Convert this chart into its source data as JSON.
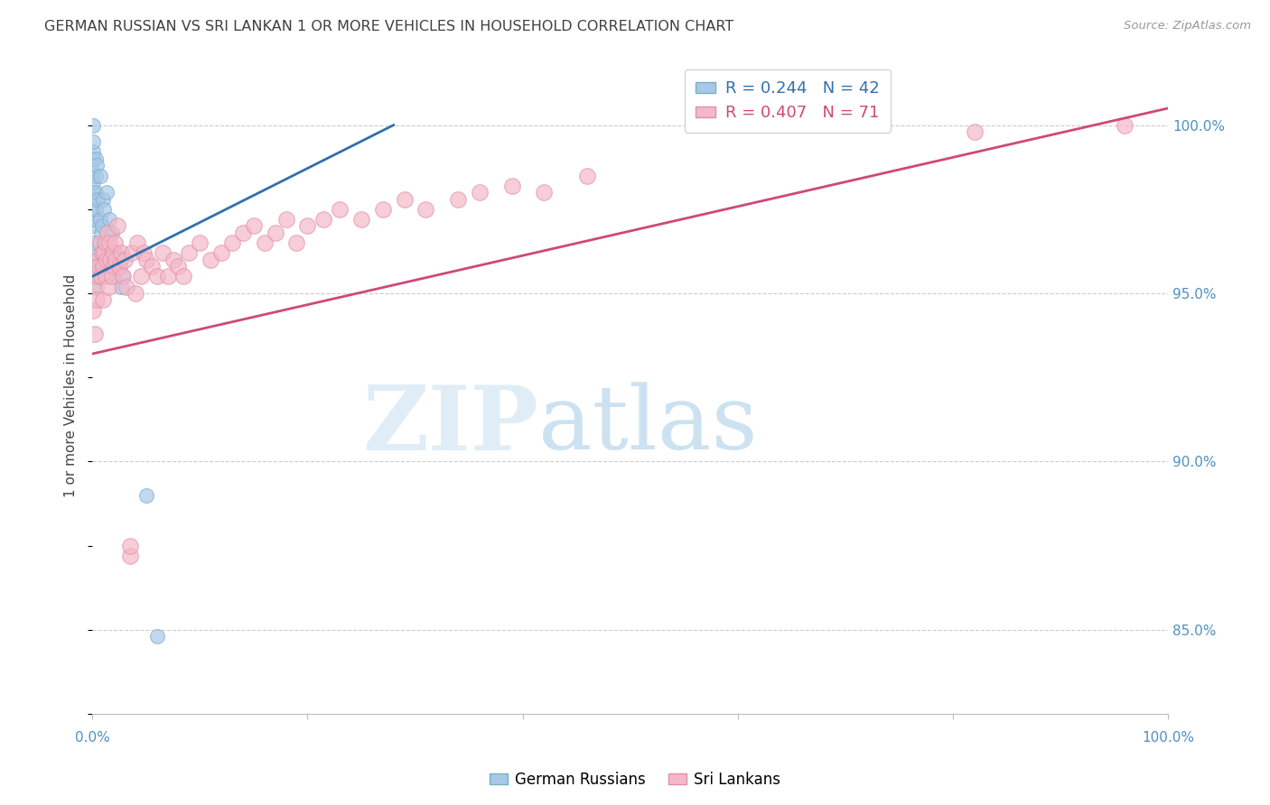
{
  "title": "GERMAN RUSSIAN VS SRI LANKAN 1 OR MORE VEHICLES IN HOUSEHOLD CORRELATION CHART",
  "source": "Source: ZipAtlas.com",
  "ylabel": "1 or more Vehicles in Household",
  "watermark_zip": "ZIP",
  "watermark_atlas": "atlas",
  "legend_blue_r": "R = 0.244",
  "legend_blue_n": "N = 42",
  "legend_pink_r": "R = 0.407",
  "legend_pink_n": "N = 71",
  "legend_label_blue": "German Russians",
  "legend_label_pink": "Sri Lankans",
  "yticks": [
    85.0,
    90.0,
    95.0,
    100.0
  ],
  "xlim": [
    0.0,
    1.0
  ],
  "ylim": [
    82.5,
    102.0
  ],
  "blue_fill_color": "#a8c8e8",
  "pink_fill_color": "#f4b8c8",
  "blue_edge_color": "#7aaec8",
  "pink_edge_color": "#e090a8",
  "blue_line_color": "#3070b0",
  "pink_line_color": "#d04878",
  "axis_label_color": "#5090c0",
  "grid_color": "#cccccc",
  "title_color": "#404040",
  "blue_x": [
    0.001,
    0.001,
    0.001,
    0.001,
    0.001,
    0.001,
    0.001,
    0.001,
    0.001,
    0.001,
    0.001,
    0.001,
    0.001,
    0.001,
    0.001,
    0.001,
    0.001,
    0.003,
    0.003,
    0.003,
    0.003,
    0.004,
    0.005,
    0.007,
    0.007,
    0.008,
    0.009,
    0.01,
    0.01,
    0.011,
    0.013,
    0.015,
    0.016,
    0.018,
    0.02,
    0.022,
    0.025,
    0.027,
    0.027,
    0.028,
    0.05,
    0.06
  ],
  "blue_y": [
    95.2,
    95.5,
    95.8,
    96.0,
    96.2,
    96.5,
    97.0,
    97.2,
    97.5,
    97.8,
    98.0,
    98.3,
    98.6,
    99.0,
    99.2,
    99.5,
    100.0,
    97.5,
    98.0,
    98.5,
    99.0,
    98.8,
    97.8,
    97.2,
    98.5,
    96.8,
    97.0,
    96.5,
    97.8,
    97.5,
    98.0,
    96.5,
    97.2,
    96.8,
    95.5,
    96.2,
    95.8,
    95.2,
    96.0,
    95.5,
    89.0,
    84.8
  ],
  "pink_x": [
    0.001,
    0.002,
    0.003,
    0.004,
    0.005,
    0.005,
    0.006,
    0.007,
    0.008,
    0.009,
    0.01,
    0.01,
    0.011,
    0.012,
    0.012,
    0.013,
    0.014,
    0.015,
    0.016,
    0.017,
    0.018,
    0.019,
    0.02,
    0.021,
    0.022,
    0.023,
    0.025,
    0.027,
    0.028,
    0.03,
    0.032,
    0.035,
    0.035,
    0.037,
    0.04,
    0.042,
    0.045,
    0.048,
    0.05,
    0.055,
    0.06,
    0.065,
    0.07,
    0.075,
    0.08,
    0.085,
    0.09,
    0.1,
    0.11,
    0.12,
    0.13,
    0.14,
    0.15,
    0.16,
    0.17,
    0.18,
    0.19,
    0.2,
    0.215,
    0.23,
    0.25,
    0.27,
    0.29,
    0.31,
    0.34,
    0.36,
    0.39,
    0.42,
    0.46,
    0.82,
    0.96
  ],
  "pink_y": [
    94.5,
    93.8,
    95.2,
    94.8,
    95.5,
    96.0,
    95.8,
    96.5,
    95.5,
    96.2,
    94.8,
    95.8,
    96.2,
    95.5,
    96.5,
    96.0,
    96.8,
    95.2,
    96.5,
    96.0,
    95.5,
    96.2,
    95.8,
    96.5,
    96.0,
    97.0,
    95.8,
    96.2,
    95.5,
    96.0,
    95.2,
    87.2,
    87.5,
    96.2,
    95.0,
    96.5,
    95.5,
    96.2,
    96.0,
    95.8,
    95.5,
    96.2,
    95.5,
    96.0,
    95.8,
    95.5,
    96.2,
    96.5,
    96.0,
    96.2,
    96.5,
    96.8,
    97.0,
    96.5,
    96.8,
    97.2,
    96.5,
    97.0,
    97.2,
    97.5,
    97.2,
    97.5,
    97.8,
    97.5,
    97.8,
    98.0,
    98.2,
    98.0,
    98.5,
    99.8,
    100.0
  ],
  "blue_line_x": [
    0.0,
    0.28
  ],
  "blue_line_y": [
    95.5,
    100.0
  ],
  "pink_line_x": [
    0.0,
    1.0
  ],
  "pink_line_y": [
    93.2,
    100.5
  ],
  "blue_marker_size": 130,
  "pink_marker_size": 160
}
